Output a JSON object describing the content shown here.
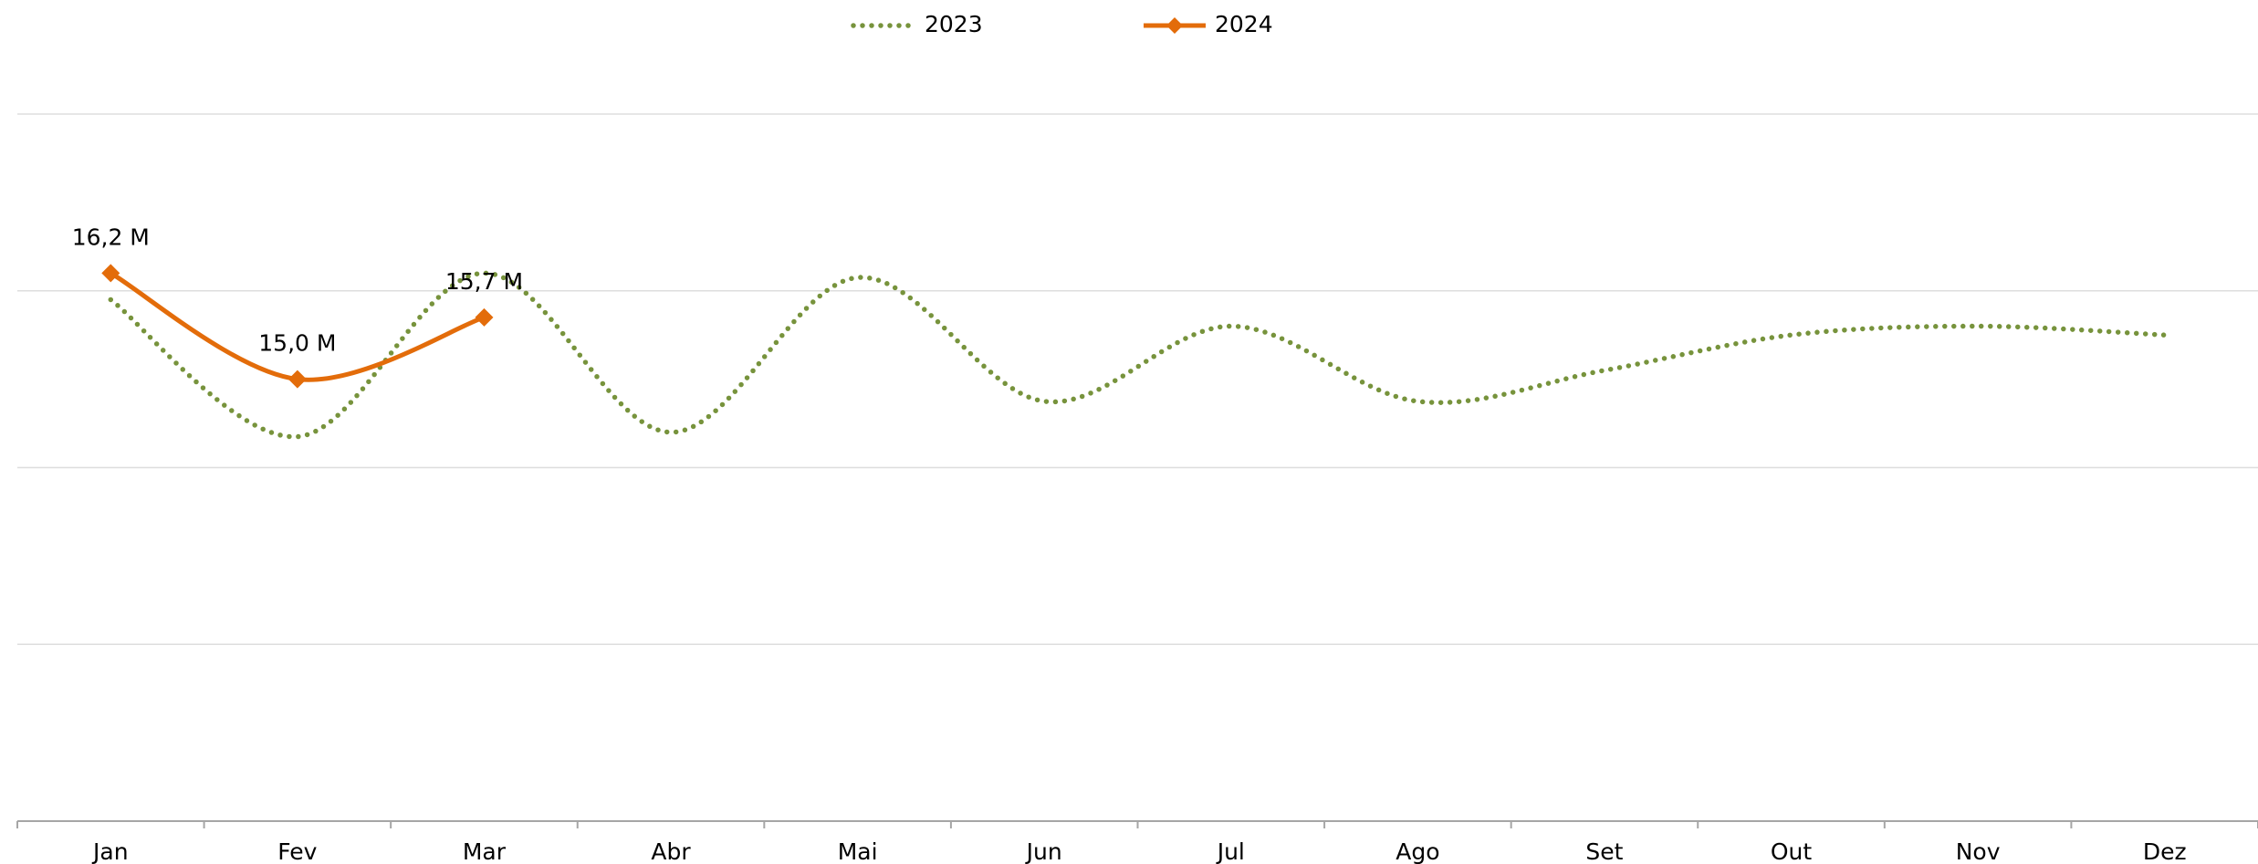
{
  "chart_data": {
    "type": "line",
    "categories": [
      "Jan",
      "Fev",
      "Mar",
      "Abr",
      "Mai",
      "Jun",
      "Jul",
      "Ago",
      "Set",
      "Out",
      "Nov",
      "Dez"
    ],
    "series": [
      {
        "name": "2023",
        "color": "#77933c",
        "style": "dotted",
        "values": [
          15.9,
          14.35,
          16.2,
          14.4,
          16.15,
          14.75,
          15.6,
          14.75,
          15.1,
          15.5,
          15.6,
          15.5
        ]
      },
      {
        "name": "2024",
        "color": "#e36c0a",
        "style": "solid",
        "marker": "diamond",
        "values": [
          16.2,
          15.0,
          15.7,
          null,
          null,
          null,
          null,
          null,
          null,
          null,
          null,
          null
        ],
        "value_labels": [
          "16,2 M",
          "15,0 M",
          "15,7 M",
          null,
          null,
          null,
          null,
          null,
          null,
          null,
          null,
          null
        ]
      }
    ],
    "ylim": [
      10,
      18
    ],
    "yticks": [
      10,
      12,
      14,
      16,
      18
    ],
    "grid": true,
    "smooth": true,
    "legend": "top"
  }
}
